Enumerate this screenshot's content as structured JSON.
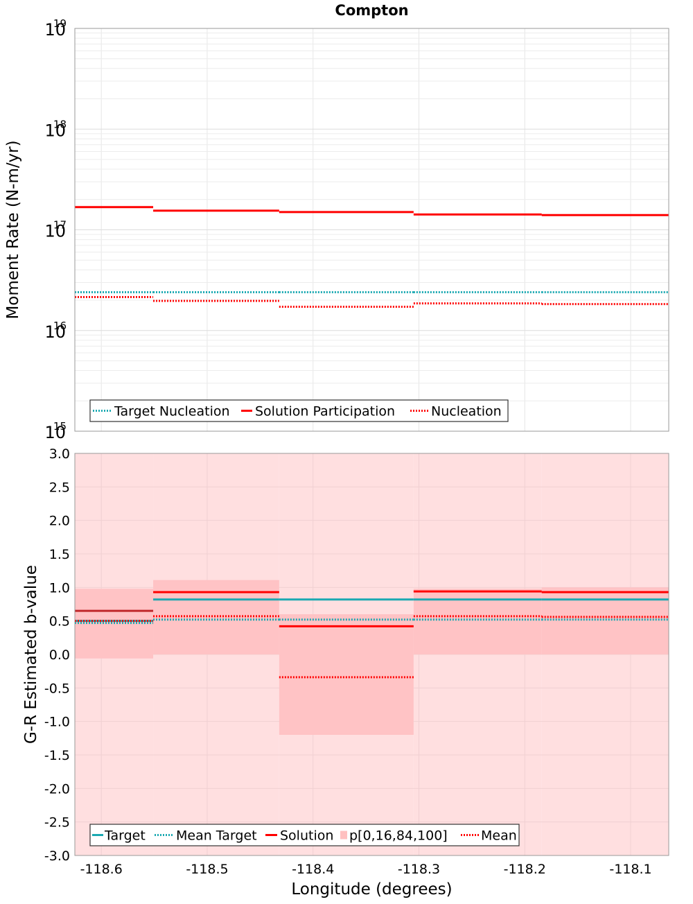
{
  "chart_data": [
    {
      "type": "line",
      "title": "Compton",
      "xlabel": "",
      "ylabel": "Moment Rate (N-m/yr)",
      "yscale": "log",
      "ylim": [
        1000000000000000.0,
        1e+19
      ],
      "xlim": [
        -118.625,
        -118.064
      ],
      "grid": true,
      "legend": "bottom-left",
      "y_tick_labels": [
        {
          "base": "10",
          "exp": "15"
        },
        {
          "base": "10",
          "exp": "16"
        },
        {
          "base": "10",
          "exp": "17"
        },
        {
          "base": "10",
          "exp": "18"
        },
        {
          "base": "10",
          "exp": "19"
        }
      ],
      "bin_edges": [
        -118.625,
        -118.551,
        -118.432,
        -118.305,
        -118.184,
        -118.064
      ],
      "series": [
        {
          "name": "Target Nucleation",
          "style": "dotted",
          "color": "#1aa9b2",
          "values": [
            2.4e+16,
            2.4e+16,
            2.4e+16,
            2.4e+16,
            2.4e+16
          ]
        },
        {
          "name": "Solution Participation",
          "style": "solid",
          "color": "#ff0000",
          "values": [
            1.68e+17,
            1.55e+17,
            1.5e+17,
            1.42e+17,
            1.4e+17
          ]
        },
        {
          "name": "Nucleation",
          "style": "dotted",
          "color": "#ff0000",
          "values": [
            2.15e+16,
            1.97e+16,
            1.72e+16,
            1.86e+16,
            1.83e+16
          ]
        }
      ]
    },
    {
      "type": "line",
      "title": "",
      "xlabel": "Longitude (degrees)",
      "ylabel": "G-R Estimated b-value",
      "ylim": [
        -3.0,
        3.0
      ],
      "xlim": [
        -118.625,
        -118.064
      ],
      "grid": true,
      "legend": "bottom-left",
      "y_ticks": [
        "-3.0",
        "-2.5",
        "-2.0",
        "-1.5",
        "-1.0",
        "-0.5",
        "0.0",
        "0.5",
        "1.0",
        "1.5",
        "2.0",
        "2.5",
        "3.0"
      ],
      "x_ticks": [
        "-118.6",
        "-118.5",
        "-118.4",
        "-118.3",
        "-118.2",
        "-118.1"
      ],
      "bin_edges": [
        -118.625,
        -118.551,
        -118.432,
        -118.305,
        -118.184,
        -118.064
      ],
      "series": [
        {
          "name": "Target",
          "style": "solid",
          "color": "#1aa9b2",
          "values": [
            0.5,
            0.82,
            0.82,
            0.82,
            0.82
          ]
        },
        {
          "name": "Mean Target",
          "style": "dotted",
          "color": "#1aa9b2",
          "values": [
            0.47,
            0.52,
            0.52,
            0.52,
            0.52
          ]
        },
        {
          "name": "Solution",
          "style": "solid",
          "color": "#ff0000",
          "values": [
            0.65,
            0.93,
            0.42,
            0.94,
            0.93
          ]
        },
        {
          "name": "p[0,16,84,100]",
          "style": "band",
          "color": "#ffc0c0",
          "outer": [
            [
              -3.0,
              3.0
            ],
            [
              -3.0,
              3.0
            ],
            [
              -3.0,
              3.0
            ],
            [
              -3.0,
              3.0
            ],
            [
              -3.0,
              3.0
            ]
          ],
          "inner": [
            [
              -0.06,
              0.98
            ],
            [
              0.0,
              1.11
            ],
            [
              -1.2,
              0.6
            ],
            [
              0.0,
              0.98
            ],
            [
              0.0,
              1.0
            ]
          ]
        },
        {
          "name": "Mean",
          "style": "dotted",
          "color": "#ff0000",
          "values": [
            0.5,
            0.57,
            -0.34,
            0.57,
            0.56
          ]
        }
      ]
    }
  ]
}
